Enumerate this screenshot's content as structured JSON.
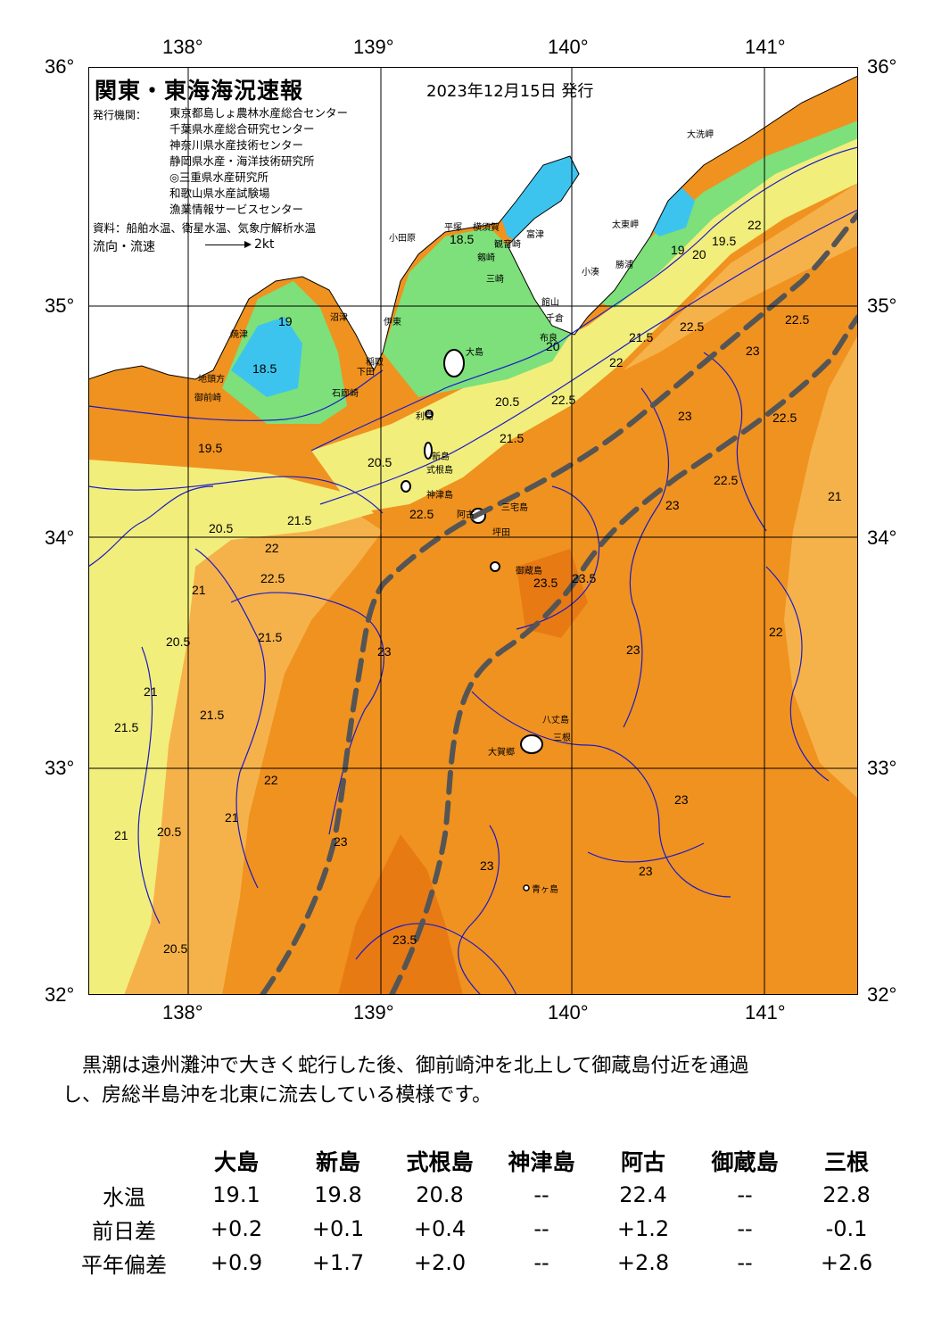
{
  "map": {
    "title": "関東・東海海況速報",
    "issue_date": "2023年12月15日 発行",
    "agency_label": "発行機関：",
    "agencies": [
      "東京都島しょ農林水産総合センター",
      "千葉県水産総合研究センター",
      "神奈川県水産技術センター",
      "静岡県水産・海洋技術研究所",
      "◎三重県水産研究所",
      "和歌山県水産試験場",
      "漁業情報サービスセンター"
    ],
    "source": "資料：船舶水温、衛星水温、気象庁解析水温",
    "flow_label": "流向・流速",
    "flow_scale": "2kt",
    "lon_ticks": [
      "138°",
      "139°",
      "140°",
      "141°"
    ],
    "lat_ticks": [
      "36°",
      "35°",
      "34°",
      "33°",
      "32°"
    ],
    "places": [
      {
        "name": "大洗岬"
      },
      {
        "name": "太東岬"
      },
      {
        "name": "勝浦"
      },
      {
        "name": "小湊"
      },
      {
        "name": "富津"
      },
      {
        "name": "横須賀"
      },
      {
        "name": "平塚"
      },
      {
        "name": "小田原"
      },
      {
        "name": "観音崎"
      },
      {
        "name": "剱崎"
      },
      {
        "name": "三崎"
      },
      {
        "name": "館山"
      },
      {
        "name": "千倉"
      },
      {
        "name": "布良"
      },
      {
        "name": "大島"
      },
      {
        "name": "利島"
      },
      {
        "name": "新島"
      },
      {
        "name": "式根島"
      },
      {
        "name": "神津島"
      },
      {
        "name": "阿古"
      },
      {
        "name": "三宅島"
      },
      {
        "name": "坪田"
      },
      {
        "name": "御蔵島"
      },
      {
        "name": "八丈島"
      },
      {
        "name": "大賀郷"
      },
      {
        "name": "三根"
      },
      {
        "name": "青ヶ島"
      },
      {
        "name": "沼津"
      },
      {
        "name": "焼津"
      },
      {
        "name": "伊東"
      },
      {
        "name": "稲取"
      },
      {
        "name": "下田"
      },
      {
        "name": "石廊崎"
      },
      {
        "name": "地頭方"
      },
      {
        "name": "御前崎"
      }
    ],
    "isotherms": [
      "18.5",
      "18.5",
      "19",
      "19",
      "19.5",
      "19.5",
      "20",
      "20",
      "20.5",
      "20.5",
      "20.5",
      "20.5",
      "20.5",
      "20.5",
      "21",
      "21",
      "21",
      "21",
      "21",
      "21.5",
      "21.5",
      "21.5",
      "21.5",
      "21.5",
      "21.5",
      "22",
      "22",
      "22",
      "22",
      "22",
      "22.5",
      "22.5",
      "22.5",
      "22.5",
      "22.5",
      "22.5",
      "22.5",
      "23",
      "23",
      "23",
      "23",
      "23",
      "23",
      "23",
      "23",
      "23",
      "23.5",
      "23.5",
      "23.5"
    ]
  },
  "summary": [
    "黒潮は遠州灘沖で大きく蛇行した後、御前崎沖を北上して御蔵島付近を通過",
    "し、房総半島沖を北東に流去している模様です。"
  ],
  "table": {
    "sites": [
      "大島",
      "新島",
      "式根島",
      "神津島",
      "阿古",
      "御蔵島",
      "三根"
    ],
    "rows": [
      {
        "label": "水温",
        "values": [
          "19.1",
          "19.8",
          "20.8",
          "--",
          "22.4",
          "--",
          "22.8"
        ]
      },
      {
        "label": "前日差",
        "values": [
          "+0.2",
          "+0.1",
          "+0.4",
          "--",
          "+1.2",
          "--",
          "-0.1"
        ]
      },
      {
        "label": "平年偏差",
        "values": [
          "+0.9",
          "+1.7",
          "+2.0",
          "--",
          "+2.8",
          "--",
          "+2.6"
        ]
      }
    ]
  },
  "colors": {
    "water_cold": "#3dc4ee",
    "water_cool": "#7de07a",
    "water_mild": "#f2ee7c",
    "water_warm": "#f6b24a",
    "water_hot": "#f0921f",
    "water_hottest": "#e87a14",
    "isotherm": "#1a1ac8",
    "kuroshio_axis": "#555555"
  }
}
